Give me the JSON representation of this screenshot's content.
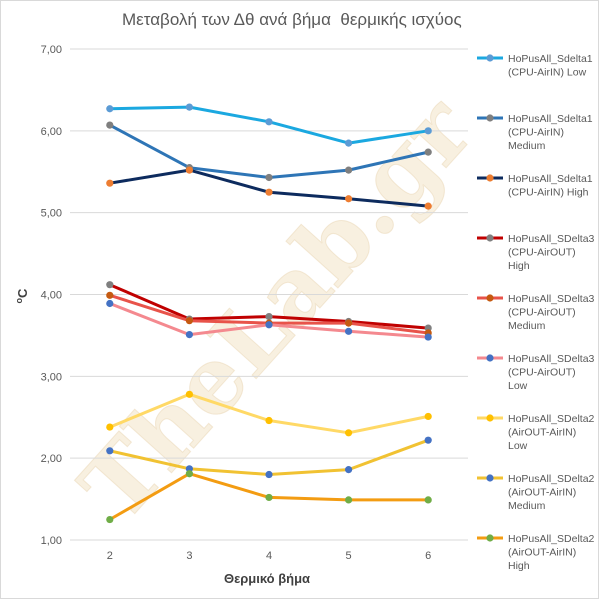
{
  "watermark": "TheLab.gr",
  "chart_data": {
    "type": "line",
    "title": "Μεταβολή των Δθ ανά βήμα  θερμικής ισχύος",
    "xlabel": "Θερμικό βήμα",
    "ylabel_main": "C",
    "ylabel_sup": "o",
    "categories": [
      "2",
      "3",
      "4",
      "5",
      "6"
    ],
    "ylim": [
      1.0,
      7.0
    ],
    "yticks": [
      1.0,
      2.0,
      3.0,
      4.0,
      5.0,
      6.0,
      7.0
    ],
    "ytick_labels": [
      "1,00",
      "2,00",
      "3,00",
      "4,00",
      "5,00",
      "6,00",
      "7,00"
    ],
    "grid": true,
    "legend_position": "right",
    "series": [
      {
        "name": "HoPusAll_Sdelta1 (CPU-AirIN) Low",
        "legend_lines": [
          "HoPusAll_Sdelta1",
          "(CPU-AirIN) Low"
        ],
        "color": "#1ba8e0",
        "marker": "#5b9bd5",
        "values": [
          6.27,
          6.29,
          6.11,
          5.85,
          6.0
        ]
      },
      {
        "name": "HoPusAll_Sdelta1 (CPU-AirIN) Medium",
        "legend_lines": [
          "HoPusAll_Sdelta1",
          "(CPU-AirIN)",
          "Medium"
        ],
        "color": "#2e75b6",
        "marker": "#7f7f7f",
        "values": [
          6.07,
          5.55,
          5.43,
          5.52,
          5.74
        ]
      },
      {
        "name": "HoPusAll_Sdelta1 (CPU-AirIN) High",
        "legend_lines": [
          "HoPusAll_Sdelta1",
          "(CPU-AirIN) High"
        ],
        "color": "#0d2b5e",
        "marker": "#ed7d31",
        "values": [
          5.36,
          5.52,
          5.25,
          5.17,
          5.08
        ]
      },
      {
        "name": "HoPusAll_SDelta3 (CPU-AirOUT) High",
        "legend_lines": [
          "HoPusAll_SDelta3",
          "(CPU-AirOUT)",
          "High"
        ],
        "color": "#c00000",
        "marker": "#7f7f7f",
        "values": [
          4.12,
          3.7,
          3.73,
          3.67,
          3.59
        ]
      },
      {
        "name": "HoPusAll_SDelta3 (CPU-AirOUT) Medium",
        "legend_lines": [
          "HoPusAll_SDelta3",
          "(CPU-AirOUT)",
          "Medium"
        ],
        "color": "#e8534a",
        "marker": "#c55a11",
        "values": [
          3.99,
          3.68,
          3.65,
          3.65,
          3.53
        ]
      },
      {
        "name": "HoPusAll_SDelta3 (CPU-AirOUT) Low",
        "legend_lines": [
          "HoPusAll_SDelta3",
          "(CPU-AirOUT)",
          "Low"
        ],
        "color": "#f4898f",
        "marker": "#4472c4",
        "values": [
          3.89,
          3.51,
          3.63,
          3.55,
          3.48
        ]
      },
      {
        "name": "HoPusAll_SDelta2 (AirOUT-AirIN) Low",
        "legend_lines": [
          "HoPusAll_SDelta2",
          "(AirOUT-AirIN)",
          "Low"
        ],
        "color": "#ffd966",
        "marker": "#ffc000",
        "values": [
          2.38,
          2.78,
          2.46,
          2.31,
          2.51
        ]
      },
      {
        "name": "HoPusAll_SDelta2 (AirOUT-AirIN) Medium",
        "legend_lines": [
          "HoPusAll_SDelta2",
          "(AirOUT-AirIN)",
          "Medium"
        ],
        "color": "#f1c232",
        "marker": "#4472c4",
        "values": [
          2.09,
          1.87,
          1.8,
          1.86,
          2.22
        ]
      },
      {
        "name": "HoPusAll_SDelta2 (AirOUT-AirIN) High",
        "legend_lines": [
          "HoPusAll_SDelta2",
          "(AirOUT-AirIN)",
          "High"
        ],
        "color": "#f39c12",
        "marker": "#70ad47",
        "values": [
          1.25,
          1.81,
          1.52,
          1.49,
          1.49
        ]
      }
    ]
  }
}
